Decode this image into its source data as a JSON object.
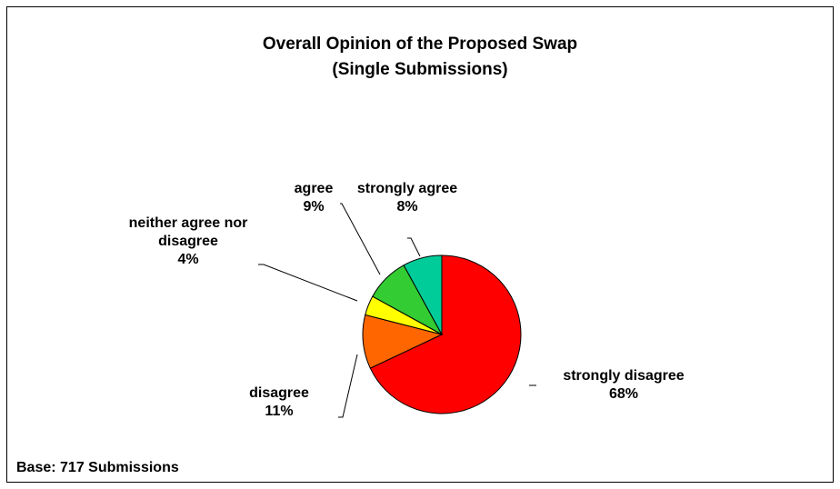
{
  "chart_data": {
    "type": "pie",
    "title": "Overall Opinion of the Proposed Swap",
    "subtitle": "(Single Submissions)",
    "slices": [
      {
        "label_lines": [
          "strongly disagree"
        ],
        "value_label": "68%",
        "value": 68,
        "color": "#ff0000"
      },
      {
        "label_lines": [
          "disagree"
        ],
        "value_label": "11%",
        "value": 11,
        "color": "#ff6600"
      },
      {
        "label_lines": [
          "neither agree nor",
          "disagree"
        ],
        "value_label": "4%",
        "value": 4,
        "color": "#ffff00"
      },
      {
        "label_lines": [
          "agree"
        ],
        "value_label": "9%",
        "value": 9,
        "color": "#33cc33"
      },
      {
        "label_lines": [
          "strongly agree"
        ],
        "value_label": "8%",
        "value": 8,
        "color": "#00cc99"
      }
    ],
    "legend": "none",
    "grid": false
  },
  "footer": {
    "base": "Base: 717 Submissions"
  }
}
